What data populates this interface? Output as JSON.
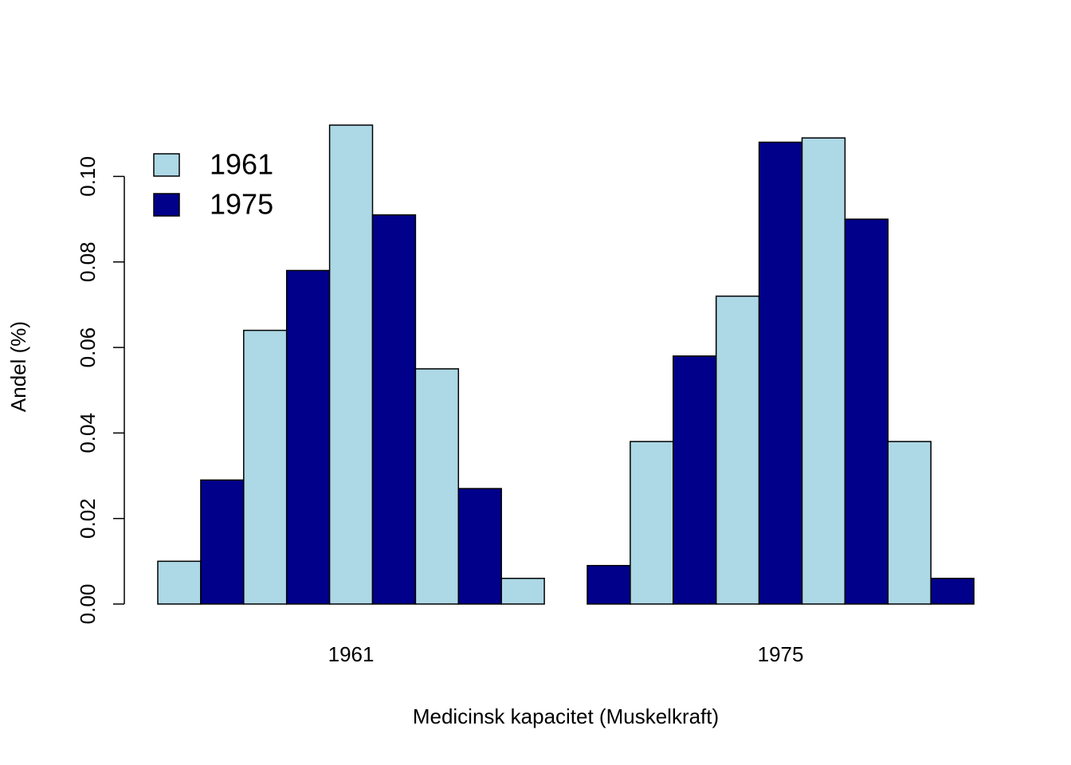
{
  "chart_data": {
    "type": "bar",
    "xlabel": "Medicinsk kapacitet (Muskelkraft)",
    "ylabel": "Andel (%)",
    "categories": [
      "1961",
      "1975"
    ],
    "colors": [
      "#add8e6",
      "#00008b"
    ],
    "series": [
      {
        "values": [
          0.01,
          0.009
        ]
      },
      {
        "values": [
          0.029,
          0.038
        ]
      },
      {
        "values": [
          0.064,
          0.058
        ]
      },
      {
        "values": [
          0.078,
          0.072
        ]
      },
      {
        "values": [
          0.112,
          0.108
        ]
      },
      {
        "values": [
          0.091,
          0.109
        ]
      },
      {
        "values": [
          0.055,
          0.09
        ]
      },
      {
        "values": [
          0.027,
          0.038
        ]
      },
      {
        "values": [
          0.006,
          0.006
        ]
      }
    ],
    "ylim": [
      0,
      0.112
    ],
    "yticks": [
      {
        "value": 0,
        "label": "0.00"
      },
      {
        "value": 0.02,
        "label": "0.02"
      },
      {
        "value": 0.04,
        "label": "0.04"
      },
      {
        "value": 0.06,
        "label": "0.06"
      },
      {
        "value": 0.08,
        "label": "0.08"
      },
      {
        "value": 0.1,
        "label": "0.10"
      }
    ],
    "legend": {
      "labels": [
        "1961",
        "1975"
      ],
      "position": "topleft"
    }
  }
}
